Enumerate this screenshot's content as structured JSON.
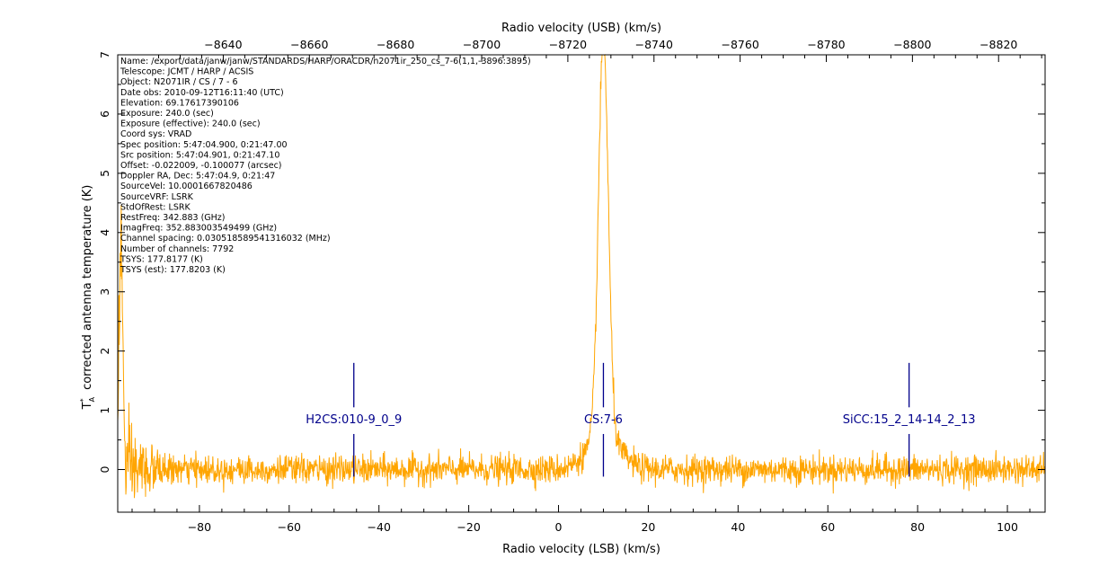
{
  "chart_data": {
    "type": "line",
    "title": "",
    "xlabel": "Radio velocity (LSB) (km/s)",
    "x2label": "Radio velocity (USB) (km/s)",
    "ylabel_main": "corrected antenna temperature (K)",
    "ylabel_symbol": "T",
    "ylabel_sub": "A",
    "ylabel_sup": "*",
    "xlim": [
      -98.2,
      108.4
    ],
    "ylim": [
      -0.72,
      7.0
    ],
    "x2lim": [
      -8615.5,
      -8830.8
    ],
    "x_ticks": [
      -80,
      -60,
      -40,
      -20,
      0,
      20,
      40,
      60,
      80,
      100
    ],
    "x2_ticks": [
      -8640,
      -8660,
      -8680,
      -8700,
      -8720,
      -8740,
      -8760,
      -8780,
      -8800,
      -8820
    ],
    "y_ticks": [
      0,
      1,
      2,
      3,
      4,
      5,
      6,
      7
    ],
    "grid": false,
    "series": [
      {
        "color": "#ffa500",
        "noise_sigma": 0.12,
        "peak": {
          "center": 10.0,
          "amplitude": 6.7,
          "core_width": 1.1,
          "wing_amplitude": 0.55,
          "wing_width": 3.6
        },
        "edge_spike": {
          "x": -97.5,
          "amplitude": 3.8
        }
      }
    ],
    "line_markers": [
      {
        "name": "H2CS:010-9_0_9",
        "x": -45.6,
        "color": "#00008b"
      },
      {
        "name": "CS:7-6",
        "x": 10.0,
        "color": "#00008b"
      },
      {
        "name": "SiCC:15_2_14-14_2_13",
        "x": 78.1,
        "color": "#00008b"
      }
    ],
    "metadata_lines": [
      "Name: /export/data/janw/janw/STANDARDS/HARP/ORACDR/n2071ir_250_cs_7-6(1,1,-3896:3895)",
      "Telescope: JCMT / HARP / ACSIS",
      "Object: N2071IR / CS / 7 - 6",
      "Date obs: 2010-09-12T16:11:40 (UTC)",
      "Elevation: 69.17617390106",
      "Exposure: 240.0 (sec)",
      "Exposure (effective): 240.0 (sec)",
      "Coord sys: VRAD",
      "Spec position: 5:47:04.900, 0:21:47.00",
      "Src position: 5:47:04.901, 0:21:47.10",
      "Offset: -0.022009, -0.100077 (arcsec)",
      "Doppler RA, Dec: 5:47:04.9, 0:21:47",
      "SourceVel: 10.0001667820486",
      "SourceVRF: LSRK",
      "StdOfRest: LSRK",
      "RestFreq: 342.883 (GHz)",
      "ImagFreq: 352.883003549499 (GHz)",
      "Channel spacing: 0.030518589541316032 (MHz)",
      "Number of channels: 7792",
      "TSYS: 177.8177 (K)",
      "TSYS (est): 177.8203 (K)"
    ]
  },
  "colors": {
    "axis": "#000000",
    "spectrum": "#ffa500",
    "markers": "#00008b"
  }
}
